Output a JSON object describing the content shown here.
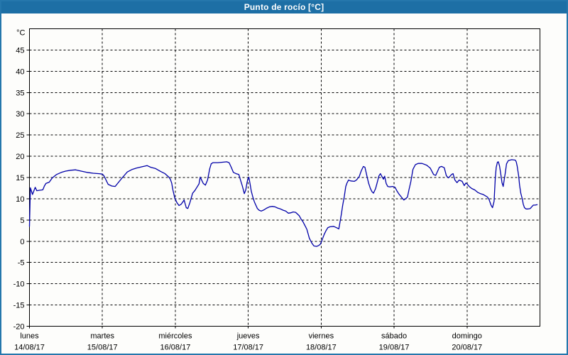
{
  "window": {
    "title": "Punto de rocío [°C]",
    "titlebar_bg": "#1d6fa5",
    "border_color": "#2577ac"
  },
  "chart_data": {
    "type": "line",
    "title": "Punto de rocío [°C]",
    "grid": "dashed",
    "legend": "none",
    "y_axis": {
      "unit_label": "°C",
      "min": -20,
      "max": 50,
      "tick_step": 5,
      "tick_labels": [
        45,
        40,
        35,
        30,
        25,
        20,
        15,
        10,
        5,
        0,
        -5,
        -10,
        -15,
        -20
      ]
    },
    "x_axis": {
      "hours_total": 168,
      "days": [
        {
          "name": "lunes",
          "date": "14/08/17"
        },
        {
          "name": "martes",
          "date": "15/08/17"
        },
        {
          "name": "miércoles",
          "date": "16/08/17"
        },
        {
          "name": "jueves",
          "date": "17/08/17"
        },
        {
          "name": "viernes",
          "date": "18/08/17"
        },
        {
          "name": "sábado",
          "date": "19/08/17"
        },
        {
          "name": "domingo",
          "date": "20/08/17"
        }
      ]
    },
    "series": [
      {
        "name": "Punto de rocío",
        "color": "#0000a8",
        "points": [
          [
            0,
            3.5
          ],
          [
            0.3,
            12.6
          ],
          [
            1,
            11
          ],
          [
            1.9,
            12.7
          ],
          [
            2.4,
            11.9
          ],
          [
            3.3,
            12
          ],
          [
            4.4,
            12.1
          ],
          [
            4.9,
            13
          ],
          [
            5.4,
            13.6
          ],
          [
            6.5,
            13.9
          ],
          [
            7.5,
            14.9
          ],
          [
            8.9,
            15.7
          ],
          [
            10.5,
            16.2
          ],
          [
            11.9,
            16.5
          ],
          [
            13.5,
            16.7
          ],
          [
            15.2,
            16.8
          ],
          [
            17,
            16.5
          ],
          [
            18.9,
            16.2
          ],
          [
            21,
            16
          ],
          [
            22.9,
            15.9
          ],
          [
            24,
            15.8
          ],
          [
            24.5,
            15.4
          ],
          [
            25.9,
            13.4
          ],
          [
            27.1,
            13
          ],
          [
            28.2,
            12.9
          ],
          [
            29.9,
            14.4
          ],
          [
            30.6,
            15
          ],
          [
            32.2,
            16.3
          ],
          [
            33.8,
            16.9
          ],
          [
            35.2,
            17.2
          ],
          [
            36.9,
            17.5
          ],
          [
            38.7,
            17.8
          ],
          [
            39.9,
            17.4
          ],
          [
            41.5,
            17.1
          ],
          [
            43.2,
            16.4
          ],
          [
            44.6,
            15.9
          ],
          [
            46,
            15
          ],
          [
            46.4,
            14.5
          ],
          [
            46.8,
            13.7
          ],
          [
            47.2,
            12.1
          ],
          [
            47.8,
            10.2
          ],
          [
            48.5,
            9.1
          ],
          [
            49.2,
            8.4
          ],
          [
            49.9,
            8.7
          ],
          [
            50.9,
            9.7
          ],
          [
            51.6,
            7.9
          ],
          [
            52.1,
            7.7
          ],
          [
            52.8,
            9.1
          ],
          [
            53.7,
            11.3
          ],
          [
            54.4,
            11.9
          ],
          [
            55.1,
            12.7
          ],
          [
            55.8,
            13.5
          ],
          [
            56.2,
            15.1
          ],
          [
            57.2,
            13.6
          ],
          [
            57.9,
            13.2
          ],
          [
            58.6,
            14.4
          ],
          [
            59.3,
            17
          ],
          [
            59.8,
            18.2
          ],
          [
            60.4,
            18.5
          ],
          [
            62,
            18.5
          ],
          [
            63.5,
            18.6
          ],
          [
            64.9,
            18.7
          ],
          [
            65.7,
            18.5
          ],
          [
            66.4,
            17.4
          ],
          [
            67.1,
            16.2
          ],
          [
            68,
            15.9
          ],
          [
            68.9,
            15.7
          ],
          [
            69.5,
            14.3
          ],
          [
            70.1,
            12.9
          ],
          [
            70.7,
            11.2
          ],
          [
            71.2,
            12.1
          ],
          [
            71.6,
            13.8
          ],
          [
            71.9,
            14.7
          ],
          [
            72.2,
            15.1
          ],
          [
            72.6,
            13.5
          ],
          [
            73,
            11.8
          ],
          [
            73.5,
            10.4
          ],
          [
            74,
            9.3
          ],
          [
            74.5,
            8.5
          ],
          [
            75,
            7.7
          ],
          [
            75.6,
            7.3
          ],
          [
            76.3,
            7.1
          ],
          [
            77.2,
            7.4
          ],
          [
            78.1,
            7.8
          ],
          [
            79,
            8.1
          ],
          [
            79.9,
            8.2
          ],
          [
            80.8,
            8.1
          ],
          [
            81.7,
            7.8
          ],
          [
            82.6,
            7.6
          ],
          [
            83.5,
            7.3
          ],
          [
            84.3,
            7.1
          ],
          [
            85.2,
            6.6
          ],
          [
            86,
            6.7
          ],
          [
            86.8,
            6.9
          ],
          [
            87.6,
            6.8
          ],
          [
            88.2,
            6.4
          ],
          [
            88.8,
            6
          ],
          [
            89.4,
            5.2
          ],
          [
            90,
            4.6
          ],
          [
            90.8,
            3.5
          ],
          [
            91.3,
            2.8
          ],
          [
            92.1,
            0.7
          ],
          [
            92.9,
            -0.4
          ],
          [
            93.6,
            -1.1
          ],
          [
            94.5,
            -1.2
          ],
          [
            95.2,
            -1
          ],
          [
            95.7,
            -0.7
          ],
          [
            96.1,
            -0.1
          ],
          [
            96.5,
            0.7
          ],
          [
            97,
            1.6
          ],
          [
            97.6,
            2.5
          ],
          [
            98.2,
            3.2
          ],
          [
            98.9,
            3.4
          ],
          [
            100.1,
            3.5
          ],
          [
            101.3,
            3.1
          ],
          [
            101.8,
            2.9
          ],
          [
            102.3,
            4.9
          ],
          [
            102.7,
            6.6
          ],
          [
            103.1,
            8.5
          ],
          [
            103.6,
            10.5
          ],
          [
            104.1,
            12.9
          ],
          [
            104.5,
            13.7
          ],
          [
            105,
            14.4
          ],
          [
            105.7,
            14.2
          ],
          [
            106.9,
            14.1
          ],
          [
            107.6,
            14.4
          ],
          [
            108.5,
            15.2
          ],
          [
            109.2,
            16.6
          ],
          [
            109.9,
            17.6
          ],
          [
            110.4,
            17.4
          ],
          [
            111.1,
            15.2
          ],
          [
            111.6,
            13.7
          ],
          [
            112.2,
            12.4
          ],
          [
            112.7,
            11.7
          ],
          [
            113.2,
            11.3
          ],
          [
            113.9,
            12.4
          ],
          [
            114.4,
            13.7
          ],
          [
            115,
            15.4
          ],
          [
            115.5,
            15.9
          ],
          [
            116,
            15.2
          ],
          [
            116.5,
            14.6
          ],
          [
            116.9,
            15.3
          ],
          [
            117.4,
            13.6
          ],
          [
            117.9,
            12.9
          ],
          [
            118.6,
            12.8
          ],
          [
            119.5,
            12.9
          ],
          [
            120.3,
            12.7
          ],
          [
            120.9,
            11.9
          ],
          [
            121.6,
            11.1
          ],
          [
            122.5,
            10.3
          ],
          [
            123.2,
            9.7
          ],
          [
            123.8,
            10
          ],
          [
            124.4,
            10.4
          ],
          [
            124.9,
            12.1
          ],
          [
            125.5,
            14
          ],
          [
            126.2,
            16.9
          ],
          [
            127,
            18
          ],
          [
            127.9,
            18.3
          ],
          [
            129.2,
            18.3
          ],
          [
            130.7,
            17.9
          ],
          [
            131.9,
            17.2
          ],
          [
            133,
            15.7
          ],
          [
            133.7,
            15.5
          ],
          [
            134.9,
            17.4
          ],
          [
            135.6,
            17.6
          ],
          [
            136.5,
            17.3
          ],
          [
            137.2,
            15.4
          ],
          [
            137.9,
            14.9
          ],
          [
            138.9,
            15.7
          ],
          [
            139.4,
            15.9
          ],
          [
            140,
            14.4
          ],
          [
            140.7,
            13.8
          ],
          [
            141.4,
            14.4
          ],
          [
            142.4,
            14.1
          ],
          [
            143.1,
            13.1
          ],
          [
            143.6,
            13.7
          ],
          [
            144,
            13.5
          ],
          [
            144.7,
            12.9
          ],
          [
            145.6,
            12.4
          ],
          [
            146.5,
            12.1
          ],
          [
            147.5,
            11.5
          ],
          [
            148.4,
            11.2
          ],
          [
            149.3,
            11
          ],
          [
            150,
            10.7
          ],
          [
            150.7,
            10.4
          ],
          [
            151.2,
            9.9
          ],
          [
            151.9,
            8.5
          ],
          [
            152.4,
            7.9
          ],
          [
            152.9,
            9.4
          ],
          [
            153.3,
            14.9
          ],
          [
            153.6,
            17.4
          ],
          [
            154,
            18.6
          ],
          [
            154.3,
            18.7
          ],
          [
            154.7,
            17.7
          ],
          [
            155.2,
            15.4
          ],
          [
            155.5,
            13.8
          ],
          [
            155.9,
            12.9
          ],
          [
            156.6,
            16.1
          ],
          [
            157,
            18.2
          ],
          [
            157.6,
            19
          ],
          [
            158.7,
            19.2
          ],
          [
            159.9,
            19.1
          ],
          [
            160.2,
            18.7
          ],
          [
            160.5,
            17.7
          ],
          [
            161,
            15.4
          ],
          [
            161.3,
            13.2
          ],
          [
            161.7,
            11.3
          ],
          [
            162.2,
            9.9
          ],
          [
            162.5,
            8.7
          ],
          [
            162.9,
            7.9
          ],
          [
            163.4,
            7.6
          ],
          [
            164.1,
            7.6
          ],
          [
            164.8,
            7.7
          ],
          [
            165.3,
            8.1
          ],
          [
            165.8,
            8.5
          ],
          [
            166.4,
            8.5
          ],
          [
            167.1,
            8.6
          ]
        ]
      }
    ]
  }
}
